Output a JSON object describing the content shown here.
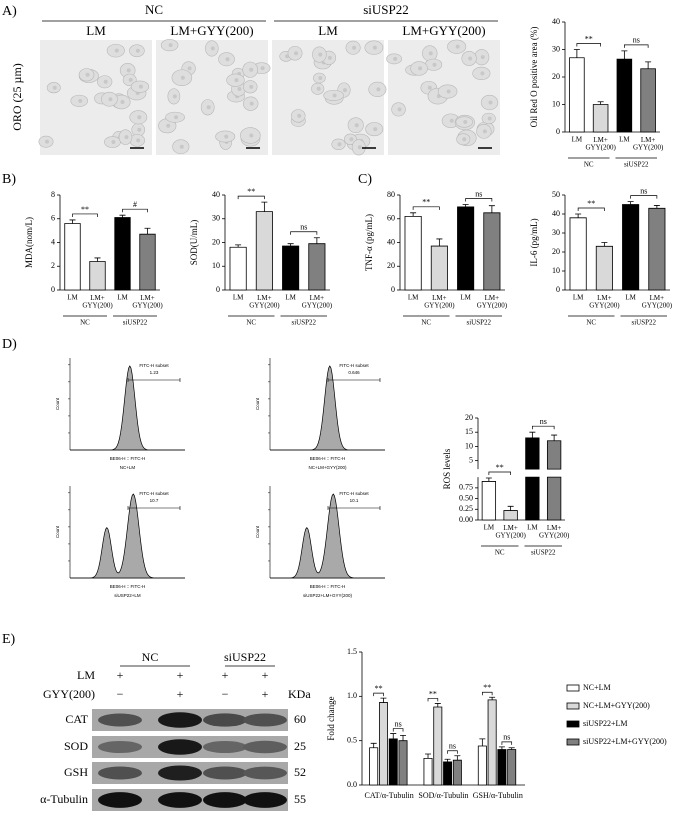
{
  "panel_labels": [
    "A)",
    "B)",
    "C)",
    "D)",
    "E)"
  ],
  "microscopy": {
    "groups": [
      "NC",
      "siUSP22"
    ],
    "conditions": [
      "LM",
      "LM+GYY(200)",
      "LM",
      "LM+GYY(200)"
    ],
    "stain": "ORO (25 µm)"
  },
  "flow": {
    "gate": "FITC-H subset",
    "xlabel": "BE06-H :: FITC-H",
    "ylabel": "Count",
    "plots": [
      {
        "sample": "NC+LM",
        "percent": 1.23
      },
      {
        "sample": "NC+LM+GYY(200)",
        "percent": 0.646
      },
      {
        "sample": "siUSP22+LM",
        "percent": 10.7
      },
      {
        "sample": "siUSP22+LM+GYY(200)",
        "percent": 10.1
      }
    ]
  },
  "blot": {
    "groups": [
      "NC",
      "siUSP22"
    ],
    "unit": "KDa",
    "rows": [
      {
        "label": "LM",
        "signs": [
          "+",
          "+",
          "+",
          "+"
        ]
      },
      {
        "label": "GYY(200)",
        "signs": [
          "−",
          "+",
          "−",
          "+"
        ]
      }
    ],
    "proteins": [
      {
        "name": "CAT",
        "kda": 60
      },
      {
        "name": "SOD",
        "kda": 25
      },
      {
        "name": "GSH",
        "kda": 52
      },
      {
        "name": "α-Tubulin",
        "kda": 55
      }
    ]
  },
  "chart_data": [
    {
      "type": "bar",
      "ylabel": "Oil Red O positive area (%)",
      "categories": [
        "LM",
        "LM+GYY(200)",
        "LM",
        "LM+GYY(200)"
      ],
      "groups": [
        "NC",
        "siUSP22"
      ],
      "values": [
        27,
        10,
        26.5,
        23
      ],
      "errors": [
        3,
        1,
        3,
        2.5
      ],
      "colors": [
        "#ffffff",
        "#d9d9d9",
        "#000000",
        "#808080"
      ],
      "ylim": [
        0,
        40
      ],
      "yticks": [
        0,
        10,
        20,
        30,
        40
      ],
      "annotations": [
        "**",
        "ns"
      ]
    },
    {
      "type": "bar",
      "ylabel": "MDA(nom/L)",
      "categories": [
        "LM",
        "LM+GYY(200)",
        "LM",
        "LM+GYY(200)"
      ],
      "groups": [
        "NC",
        "siUSP22"
      ],
      "values": [
        5.6,
        2.4,
        6.1,
        4.7
      ],
      "errors": [
        0.3,
        0.3,
        0.2,
        0.5
      ],
      "colors": [
        "#ffffff",
        "#d9d9d9",
        "#000000",
        "#808080"
      ],
      "ylim": [
        0,
        8
      ],
      "yticks": [
        0,
        2,
        4,
        6,
        8
      ],
      "annotations": [
        "**",
        "#"
      ]
    },
    {
      "type": "bar",
      "ylabel": "SOD(U/mL)",
      "categories": [
        "LM",
        "LM+GYY(200)",
        "LM",
        "LM+GYY(200)"
      ],
      "groups": [
        "NC",
        "siUSP22"
      ],
      "values": [
        18,
        33,
        18.5,
        19.5
      ],
      "errors": [
        1,
        4,
        1,
        2.5
      ],
      "colors": [
        "#ffffff",
        "#d9d9d9",
        "#000000",
        "#808080"
      ],
      "ylim": [
        0,
        40
      ],
      "yticks": [
        0,
        10,
        20,
        30,
        40
      ],
      "annotations": [
        "**",
        "ns"
      ]
    },
    {
      "type": "bar",
      "ylabel": "TNF-α (pg/mL)",
      "categories": [
        "LM",
        "LM+GYY(200)",
        "LM",
        "LM+GYY(200)"
      ],
      "groups": [
        "NC",
        "siUSP22"
      ],
      "values": [
        62,
        37,
        70,
        65
      ],
      "errors": [
        3,
        6,
        2,
        6
      ],
      "colors": [
        "#ffffff",
        "#d9d9d9",
        "#000000",
        "#808080"
      ],
      "ylim": [
        0,
        80
      ],
      "yticks": [
        0,
        20,
        40,
        60,
        80
      ],
      "annotations": [
        "**",
        "ns"
      ]
    },
    {
      "type": "bar",
      "ylabel": "IL-6 (pg/mL)",
      "categories": [
        "LM",
        "LM+GYY(200)",
        "LM",
        "LM+GYY(200)"
      ],
      "groups": [
        "NC",
        "siUSP22"
      ],
      "values": [
        38,
        23,
        45,
        43
      ],
      "errors": [
        2,
        2,
        1.5,
        1.5
      ],
      "colors": [
        "#ffffff",
        "#d9d9d9",
        "#000000",
        "#808080"
      ],
      "ylim": [
        0,
        50
      ],
      "yticks": [
        0,
        10,
        20,
        30,
        40,
        50
      ],
      "annotations": [
        "**",
        "ns"
      ]
    },
    {
      "type": "bar",
      "ylabel": "ROS levels",
      "categories": [
        "LM",
        "LM+GYY(200)",
        "LM",
        "LM+GYY(200)"
      ],
      "groups": [
        "NC",
        "siUSP22"
      ],
      "values": [
        0.9,
        0.22,
        13,
        12
      ],
      "errors": [
        0.08,
        0.1,
        2,
        2
      ],
      "colors": [
        "#ffffff",
        "#d9d9d9",
        "#000000",
        "#808080"
      ],
      "ylim": [
        0,
        20
      ],
      "axis_break": [
        1,
        2
      ],
      "yticks": [
        {
          "value": 0,
          "label": "0.00"
        },
        0.25,
        {
          "value": 0.5,
          "label": "0.50"
        },
        0.75,
        5,
        10,
        15,
        20
      ],
      "annotations": [
        "**",
        "ns"
      ]
    },
    {
      "type": "grouped_bar",
      "ylabel": "Fold change",
      "categories": [
        "CAT/α-Tubulin",
        "SOD/α-Tubulin",
        "GSH/α-Tubulin"
      ],
      "series": [
        {
          "name": "NC+LM",
          "color": "#ffffff",
          "values": [
            0.42,
            0.3,
            0.44
          ],
          "errors": [
            0.05,
            0.05,
            0.08
          ]
        },
        {
          "name": "NC+LM+GYY(200)",
          "color": "#d9d9d9",
          "values": [
            0.93,
            0.88,
            0.96
          ],
          "errors": [
            0.05,
            0.04,
            0.03
          ]
        },
        {
          "name": "siUSP22+LM",
          "color": "#000000",
          "values": [
            0.52,
            0.26,
            0.4
          ],
          "errors": [
            0.06,
            0.03,
            0.03
          ]
        },
        {
          "name": "siUSP22+LM+GYY(200)",
          "color": "#808080",
          "values": [
            0.5,
            0.28,
            0.4
          ],
          "errors": [
            0.06,
            0.05,
            0.02
          ]
        }
      ],
      "ylim": [
        0,
        1.5
      ],
      "yticks": [
        {
          "value": 0,
          "label": "0.0"
        },
        0.5,
        {
          "value": 1,
          "label": "1.0"
        },
        1.5
      ],
      "annotations": [
        [
          "**",
          "ns"
        ],
        [
          "**",
          "ns"
        ],
        [
          "**",
          "ns"
        ]
      ],
      "legend": "right"
    }
  ]
}
